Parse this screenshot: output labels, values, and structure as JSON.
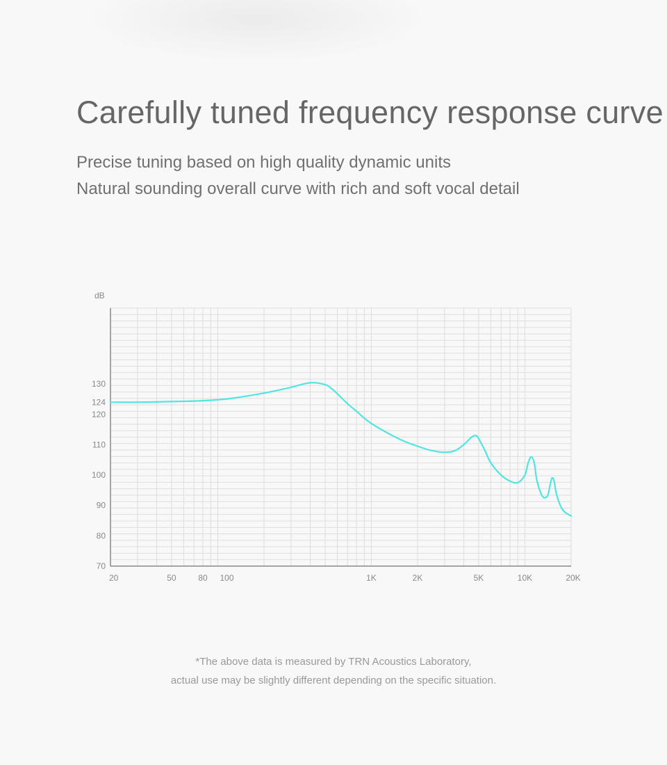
{
  "headline": "Carefully tuned frequency response curve",
  "subtitle_lines": [
    "Precise tuning based on high quality dynamic units",
    "Natural sounding overall curve with rich and soft vocal detail"
  ],
  "footnote_lines": [
    "*The above data is measured by TRN Acoustics Laboratory,",
    "actual use may be slightly different depending on the specific situation."
  ],
  "colors": {
    "curve": "#4fe6e2",
    "axis": "#888888",
    "grid": "#dddddd",
    "background": "#f8f8f8"
  },
  "chart_data": {
    "type": "line",
    "title": "",
    "xlabel": "",
    "ylabel": "dB",
    "x_scale": "log",
    "xlim": [
      20,
      20000
    ],
    "ylim": [
      70,
      155
    ],
    "grid": true,
    "x_ticks": [
      {
        "value": 20,
        "label": "20"
      },
      {
        "value": 50,
        "label": "50"
      },
      {
        "value": 80,
        "label": "80"
      },
      {
        "value": 100,
        "label": "100"
      },
      {
        "value": 1000,
        "label": "1K"
      },
      {
        "value": 2000,
        "label": "2K"
      },
      {
        "value": 5000,
        "label": "5K"
      },
      {
        "value": 10000,
        "label": "10K"
      },
      {
        "value": 20000,
        "label": "20K"
      }
    ],
    "y_ticks": [
      {
        "value": 70,
        "label": "70"
      },
      {
        "value": 80,
        "label": "80"
      },
      {
        "value": 90,
        "label": "90"
      },
      {
        "value": 100,
        "label": "100"
      },
      {
        "value": 110,
        "label": "110"
      },
      {
        "value": 120,
        "label": "120"
      },
      {
        "value": 124,
        "label": "124"
      },
      {
        "value": 130,
        "label": "130"
      }
    ],
    "series": [
      {
        "x": [
          20,
          30,
          50,
          80,
          120,
          200,
          300,
          400,
          500,
          550,
          600,
          700,
          800,
          1000,
          1500,
          2000,
          2500,
          3000,
          3500,
          4000,
          4500,
          4800,
          5000,
          5500,
          6000,
          7000,
          8000,
          9000,
          10000,
          10500,
          11000,
          11500,
          12000,
          13000,
          14000,
          14500,
          15000,
          15500,
          16000,
          17000,
          18000,
          20000
        ],
        "y": [
          124,
          124,
          124.2,
          124.5,
          125.2,
          127,
          128.9,
          130.4,
          129.8,
          128.5,
          126.8,
          123.5,
          121,
          117,
          112,
          109.5,
          108,
          107.5,
          108,
          110,
          112.5,
          113,
          112,
          108,
          104,
          100,
          98,
          97.5,
          100,
          104,
          106,
          104,
          98,
          93,
          93,
          96,
          99,
          98,
          94,
          90,
          88,
          86.5
        ]
      }
    ]
  }
}
